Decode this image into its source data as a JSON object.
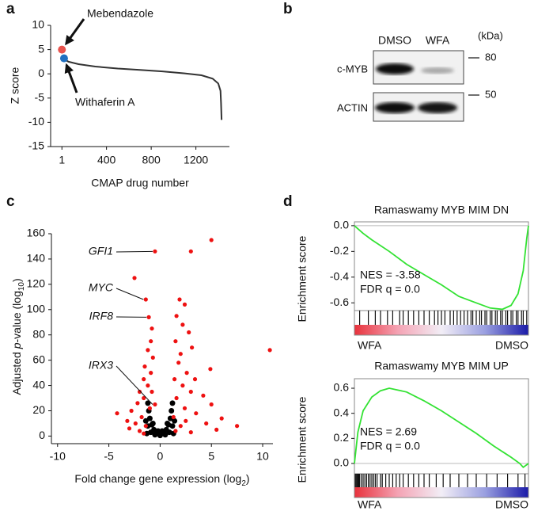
{
  "panel_labels": [
    "a",
    "b",
    "c",
    "d"
  ],
  "blot": {
    "lanes": [
      "DMSO",
      "WFA"
    ],
    "unit": "(kDa)",
    "markers": [
      80,
      50
    ],
    "proteins": [
      "c-MYB",
      "ACTIN"
    ]
  },
  "chart_data": [
    {
      "type": "line",
      "ylabel": "Z score",
      "xlabel": "CMAP drug number",
      "xlim": [
        -100,
        1500
      ],
      "ylim": [
        -15,
        10
      ],
      "xticks": [
        1,
        400,
        800,
        1200
      ],
      "yticks": [
        -15,
        -10,
        -5,
        0,
        5,
        10
      ],
      "color": "#333333",
      "x": [
        20,
        60,
        150,
        300,
        500,
        700,
        900,
        1100,
        1250,
        1350,
        1400,
        1420,
        1425,
        1430
      ],
      "values": [
        3,
        2.5,
        2,
        1.5,
        1.1,
        0.8,
        0.5,
        0.1,
        -0.3,
        -1,
        -2,
        -3.5,
        -6,
        -9.5
      ],
      "highlights": [
        {
          "name": "Mebendazole",
          "x": 1,
          "y": 5,
          "color": "#e8534d",
          "label_color": "#999999"
        },
        {
          "name": "Withaferin A",
          "x": 20,
          "y": 3.2,
          "color": "#1f6fc0",
          "label_color": "#111111"
        }
      ]
    },
    {
      "type": "scatter",
      "ylabel_parts": [
        "Adjusted ",
        "p",
        "-value (log",
        "10",
        ")"
      ],
      "xlabel_parts": [
        "Fold change gene expression (log",
        "2",
        ")"
      ],
      "xlim": [
        -10.6,
        11
      ],
      "ylim": [
        -6,
        160
      ],
      "xticks": [
        -10,
        -5,
        0,
        5,
        10
      ],
      "yticks": [
        0,
        20,
        40,
        60,
        80,
        100,
        120,
        140,
        160
      ],
      "series": [
        {
          "color": "#000000",
          "x": [
            0,
            -0.3,
            0.3,
            -0.6,
            0.6,
            -0.8,
            0.8,
            -1.0,
            1.0,
            -1.1,
            1.1,
            -1.2,
            1.2,
            -0.5,
            0.5,
            -1.3,
            1.3,
            -0.9,
            0.9,
            -1.2,
            1.2,
            -1.4,
            1.4,
            -0.2,
            0.2,
            -0.7,
            0.7
          ],
          "y": [
            0.5,
            2,
            2,
            5,
            5,
            9,
            9,
            14,
            14,
            20,
            20,
            26,
            26,
            1,
            1,
            2,
            2,
            3,
            3,
            8,
            8,
            12,
            12,
            4,
            4,
            10,
            10
          ]
        },
        {
          "color": "#ee1111",
          "x": [
            -0.5,
            -2.5,
            -1.4,
            -1.1,
            -0.8,
            -0.9,
            -1.2,
            -0.7,
            -1.5,
            -0.9,
            -1.6,
            -1.2,
            -2.0,
            -0.8,
            -1.6,
            -2.2,
            -0.5,
            -1.0,
            -2.8,
            -4.2,
            -1.8,
            -3.2,
            -2.4,
            -1.4,
            -3.0,
            -2.0,
            -1.6,
            5.0,
            3.0,
            1.9,
            2.4,
            1.6,
            2.2,
            2.8,
            1.5,
            3.1,
            2.0,
            1.8,
            4.9,
            10.7,
            2.6,
            3.4,
            1.4,
            2.2,
            4.2,
            3.0,
            1.6,
            5.0,
            2.4,
            6.0,
            3.5,
            7.5,
            1.3,
            4.5,
            2.0,
            5.5,
            1.5,
            3.0,
            2.5
          ],
          "y": [
            146,
            125,
            108,
            94,
            85,
            75,
            68,
            62,
            55,
            50,
            45,
            40,
            35,
            35,
            30,
            26,
            25,
            22,
            20,
            18,
            15,
            12,
            10,
            8,
            6,
            4,
            2,
            155,
            146,
            108,
            104,
            95,
            88,
            82,
            75,
            70,
            65,
            58,
            53,
            68,
            50,
            45,
            45,
            40,
            32,
            35,
            30,
            25,
            22,
            14,
            18,
            8,
            15,
            10,
            8,
            5,
            4,
            3,
            12
          ]
        }
      ],
      "annotations": [
        {
          "text": "GFI1",
          "x": -0.5,
          "y": 146
        },
        {
          "text": "MYC",
          "x": -1.4,
          "y": 108
        },
        {
          "text": "IRF8",
          "x": -1.1,
          "y": 94
        },
        {
          "text": "IRX3",
          "x": -0.5,
          "y": 25
        }
      ]
    },
    {
      "type": "enrichment",
      "title": "Ramaswamy MYB MIM DN",
      "ylabel": "Enrichment score",
      "xlim": [
        0,
        100
      ],
      "ylim": [
        -0.66,
        0.03
      ],
      "yticks": [
        {
          "value": 0,
          "label": "0.0"
        },
        -0.2,
        -0.4,
        -0.6
      ],
      "color": "#33e233",
      "x": [
        0,
        5,
        10,
        20,
        30,
        40,
        50,
        60,
        70,
        78,
        85,
        90,
        94,
        97,
        99,
        100
      ],
      "values": [
        0,
        -0.06,
        -0.11,
        -0.2,
        -0.3,
        -0.38,
        -0.46,
        -0.55,
        -0.6,
        -0.64,
        -0.65,
        -0.62,
        -0.53,
        -0.35,
        -0.1,
        0
      ],
      "hits": [
        3,
        8,
        12,
        15,
        19,
        22,
        26,
        28,
        31,
        34,
        37,
        40,
        43,
        46,
        48,
        50,
        52,
        55,
        57,
        59,
        61,
        63,
        65,
        67,
        68,
        70,
        72,
        73,
        75,
        76,
        78,
        79,
        81,
        82,
        84,
        85,
        87,
        88,
        90,
        91,
        93,
        94,
        96,
        97,
        99
      ],
      "annotations": [
        "NES = -3.58",
        "FDR q = 0.0"
      ],
      "end_labels": [
        "WFA",
        "DMSO"
      ]
    },
    {
      "type": "enrichment",
      "title": "Ramaswamy MYB MIM UP",
      "ylabel": "Enrichment score",
      "xlim": [
        0,
        100
      ],
      "ylim": [
        -0.082,
        0.676
      ],
      "yticks": [
        {
          "value": 0,
          "label": "0.0"
        },
        0.2,
        0.4,
        0.6
      ],
      "color": "#33e233",
      "x": [
        0,
        2,
        5,
        10,
        15,
        20,
        30,
        40,
        50,
        60,
        70,
        80,
        90,
        95,
        97,
        99,
        100
      ],
      "values": [
        0,
        0.25,
        0.42,
        0.53,
        0.58,
        0.6,
        0.57,
        0.5,
        0.42,
        0.33,
        0.24,
        0.14,
        0.05,
        0.0,
        -0.03,
        -0.01,
        0.0
      ],
      "hits": [
        0.5,
        1,
        1.5,
        2,
        2.5,
        3,
        4,
        5,
        6,
        7,
        8,
        9,
        10,
        11,
        12,
        13,
        15,
        16,
        18,
        20,
        22,
        24,
        26,
        28,
        31,
        34,
        37,
        40,
        43,
        47,
        51,
        55,
        60,
        65,
        70,
        76,
        82,
        88,
        94,
        98
      ],
      "annotations": [
        "NES = 2.69",
        "FDR q = 0.0"
      ],
      "end_labels": [
        "WFA",
        "DMSO"
      ]
    }
  ]
}
